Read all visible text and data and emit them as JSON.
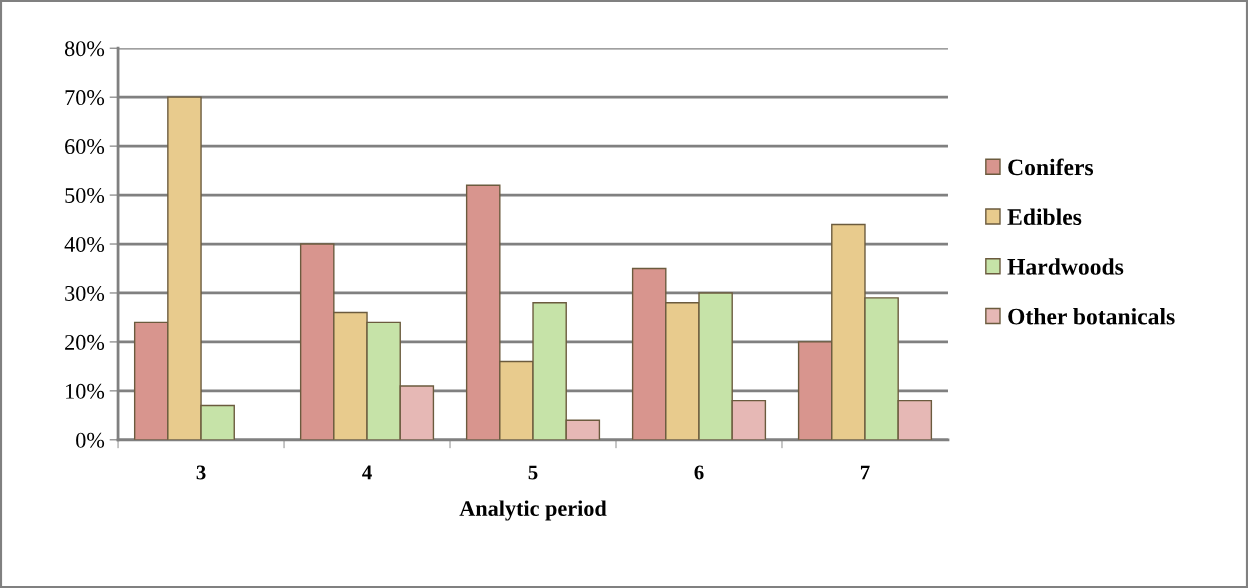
{
  "chart_data": {
    "type": "bar",
    "xlabel": "Analytic period",
    "categories": [
      "3",
      "4",
      "5",
      "6",
      "7"
    ],
    "series": [
      {
        "name": "Conifers",
        "color": "#d8958e",
        "values": [
          24,
          40,
          52,
          35,
          20
        ]
      },
      {
        "name": "Edibles",
        "color": "#e8cb8d",
        "values": [
          70,
          26,
          16,
          28,
          44
        ]
      },
      {
        "name": "Hardwoods",
        "color": "#c6e3a8",
        "values": [
          7,
          24,
          28,
          30,
          29
        ]
      },
      {
        "name": "Other botanicals",
        "color": "#e6b8b5",
        "values": [
          null,
          11,
          4,
          8,
          8
        ]
      }
    ],
    "ylim": [
      0,
      80
    ],
    "yticks": [
      {
        "value": 0,
        "label": "0%"
      },
      {
        "value": 10,
        "label": "10%"
      },
      {
        "value": 20,
        "label": "20%"
      },
      {
        "value": 30,
        "label": "30%"
      },
      {
        "value": 40,
        "label": "40%"
      },
      {
        "value": 50,
        "label": "50%"
      },
      {
        "value": 60,
        "label": "60%"
      },
      {
        "value": 70,
        "label": "70%"
      },
      {
        "value": 80,
        "label": "80%"
      }
    ],
    "grid": "y",
    "legend": "right"
  }
}
